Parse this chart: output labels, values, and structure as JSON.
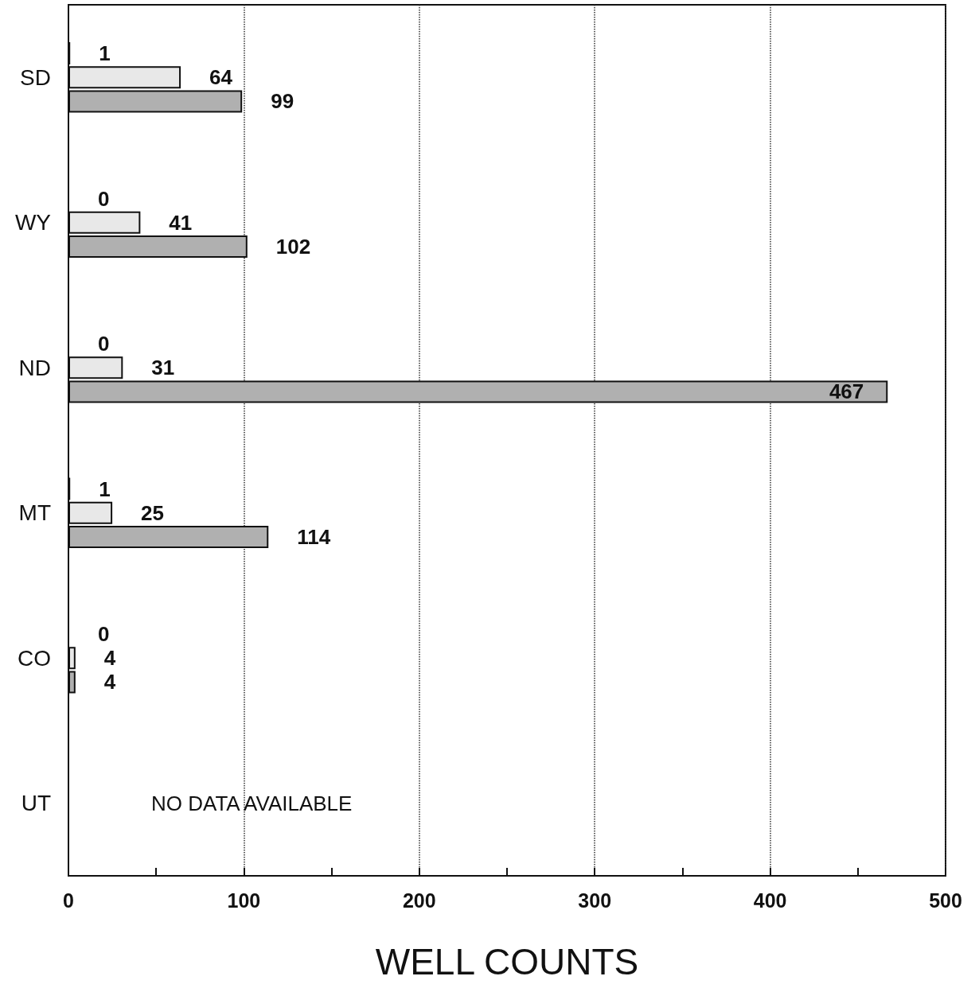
{
  "chart_data": {
    "type": "bar",
    "orientation": "horizontal",
    "xlabel": "WELL COUNTS",
    "categories": [
      "SD",
      "WY",
      "ND",
      "MT",
      "CO",
      "UT"
    ],
    "series": [
      {
        "color": "#111111",
        "values": [
          1,
          0,
          0,
          1,
          0,
          null
        ]
      },
      {
        "color": "#e8e8e8",
        "values": [
          64,
          41,
          31,
          25,
          4,
          null
        ]
      },
      {
        "color": "#b0b0b0",
        "values": [
          99,
          102,
          467,
          114,
          4,
          null
        ]
      }
    ],
    "xlim": [
      0,
      500
    ],
    "xticks": [
      0,
      {
        "value": 50,
        "label": null
      },
      100,
      {
        "value": 150,
        "label": null
      },
      200,
      {
        "value": 250,
        "label": null
      },
      300,
      {
        "value": 350,
        "label": null
      },
      400,
      {
        "value": 450,
        "label": null
      },
      500
    ],
    "grid": "x",
    "data_labels": true,
    "annotations": [
      "NO DATA AVAILABLE"
    ]
  }
}
